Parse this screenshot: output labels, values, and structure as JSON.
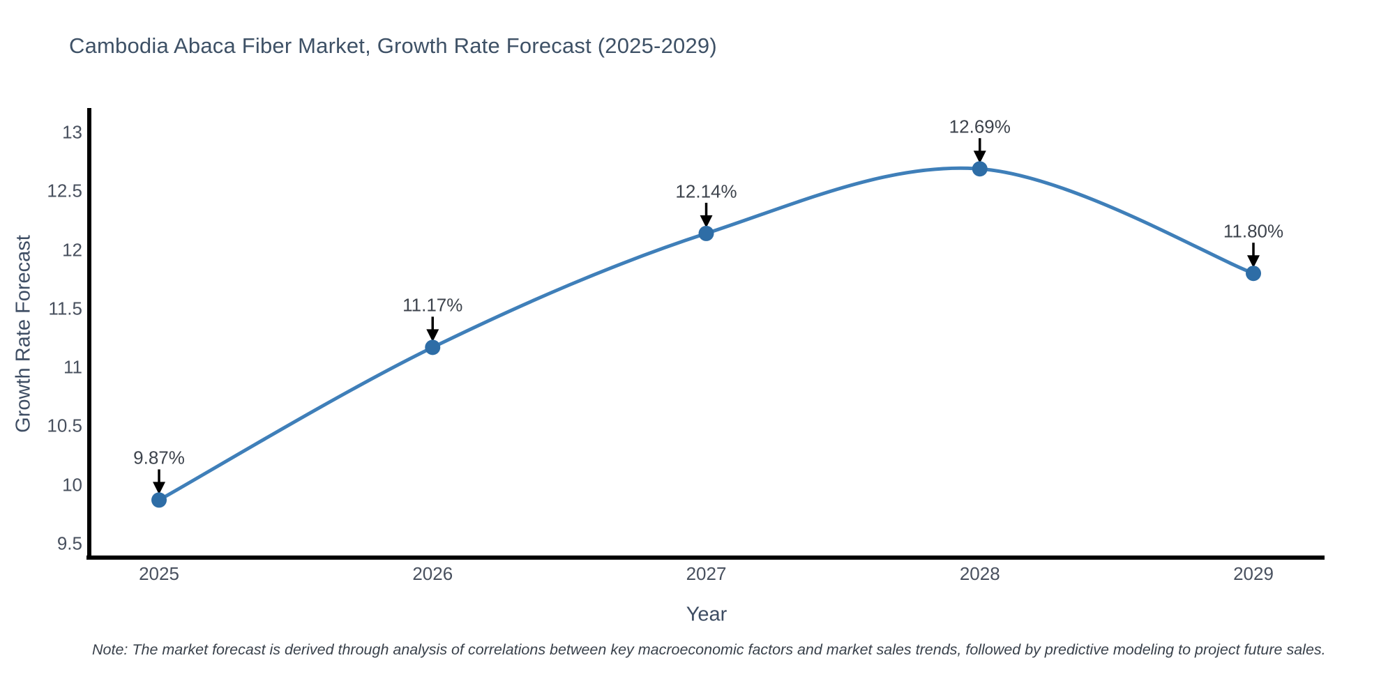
{
  "title": "Cambodia Abaca Fiber Market, Growth Rate Forecast (2025-2029)",
  "note": "Note: The market forecast is derived through analysis of correlations between key macroeconomic factors and market sales trends, followed by predictive modeling to project future sales.",
  "chart_data": {
    "type": "line",
    "title": "Cambodia Abaca Fiber Market, Growth Rate Forecast (2025-2029)",
    "x": [
      2025,
      2026,
      2027,
      2028,
      2029
    ],
    "x_tick_labels": [
      "2025",
      "2026",
      "2027",
      "2028",
      "2029"
    ],
    "series": [
      {
        "name": "Growth Rate Forecast",
        "values": [
          9.87,
          11.17,
          12.14,
          12.69,
          11.8
        ]
      }
    ],
    "point_labels": [
      "9.87%",
      "11.17%",
      "12.14%",
      "12.69%",
      "11.80%"
    ],
    "xlabel": "Year",
    "ylabel": "Growth Rate Forecast",
    "yticks": [
      13,
      12.5,
      12,
      11.5,
      11,
      10.5,
      10,
      9.5
    ],
    "ytick_labels": [
      "13",
      "12.5",
      "12",
      "11.5",
      "11",
      "10.5",
      "10",
      "9.5"
    ],
    "xlim": [
      2024.745,
      2029.26
    ],
    "ylim": [
      9.38,
      13.19
    ],
    "line_shape": "spline",
    "grid": false,
    "legend": "none",
    "colors": {
      "line": "#3f7fb9",
      "marker": "#2e6da6",
      "axis": "#000000",
      "arrow": "#000000"
    }
  }
}
